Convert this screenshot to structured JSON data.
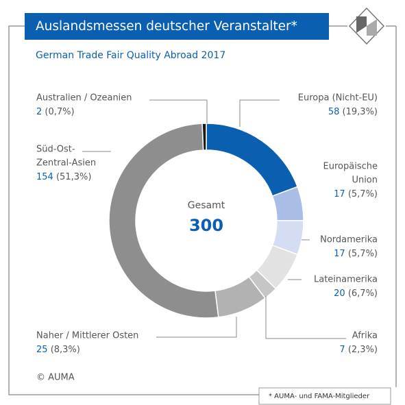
{
  "chart_data": {
    "type": "donut",
    "title": "Auslandsmessen deutscher Veranstalter*",
    "subtitle": "German Trade Fair Quality Abroad 2017",
    "center_label": "Gesamt",
    "total": 300,
    "categories": [
      [
        "Europa (Nicht-EU)"
      ],
      [
        "Europäische",
        "Union"
      ],
      [
        "Nordamerika"
      ],
      [
        "Lateinamerika"
      ],
      [
        "Afrika"
      ],
      [
        "Naher / Mittlerer Osten"
      ],
      [
        "Süd-Ost-",
        "Zentral-Asien"
      ],
      [
        "Australien / Ozeanien"
      ]
    ],
    "values": [
      58,
      17,
      17,
      20,
      7,
      25,
      154,
      2
    ],
    "value_labels": [
      "(19,3%)",
      "(5,7%)",
      "(5,7%)",
      "(6,7%)",
      "(2,3%)",
      "(8,3%)",
      "(51,3%)",
      "(0,7%)"
    ],
    "colors": [
      "#0a5fb0",
      "#a9bde6",
      "#d5ddf2",
      "#e2e2e2",
      "#c6c6c6",
      "#b2b2b2",
      "#8e8e8e",
      "#1a1a1a"
    ],
    "source": "© AUMA",
    "footnote": "* AUMA- und FAMA-Mitglieder"
  }
}
